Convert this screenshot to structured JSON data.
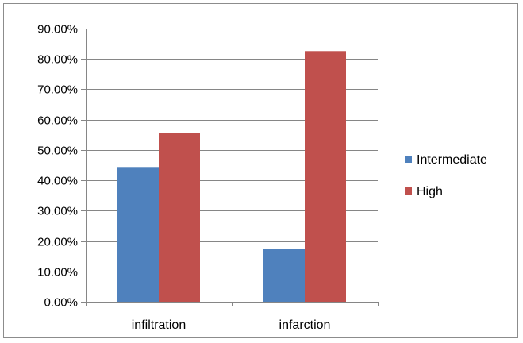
{
  "chart_data": {
    "type": "bar",
    "categories": [
      "infiltration",
      "infarction"
    ],
    "series": [
      {
        "name": "Intermediate",
        "values": [
          44.4,
          17.4
        ],
        "color": "#4f81bd"
      },
      {
        "name": "High",
        "values": [
          55.6,
          82.6
        ],
        "color": "#c0504d"
      }
    ],
    "y_ticks": [
      "0.00%",
      "10.00%",
      "20.00%",
      "30.00%",
      "40.00%",
      "50.00%",
      "60.00%",
      "70.00%",
      "80.00%",
      "90.00%"
    ],
    "ylim": [
      0,
      90
    ],
    "y_unit": "percent",
    "grid": true,
    "legend_position": "right",
    "colors": {
      "axis": "#868686",
      "grid": "#868686",
      "frame": "#8c8c8c"
    }
  }
}
